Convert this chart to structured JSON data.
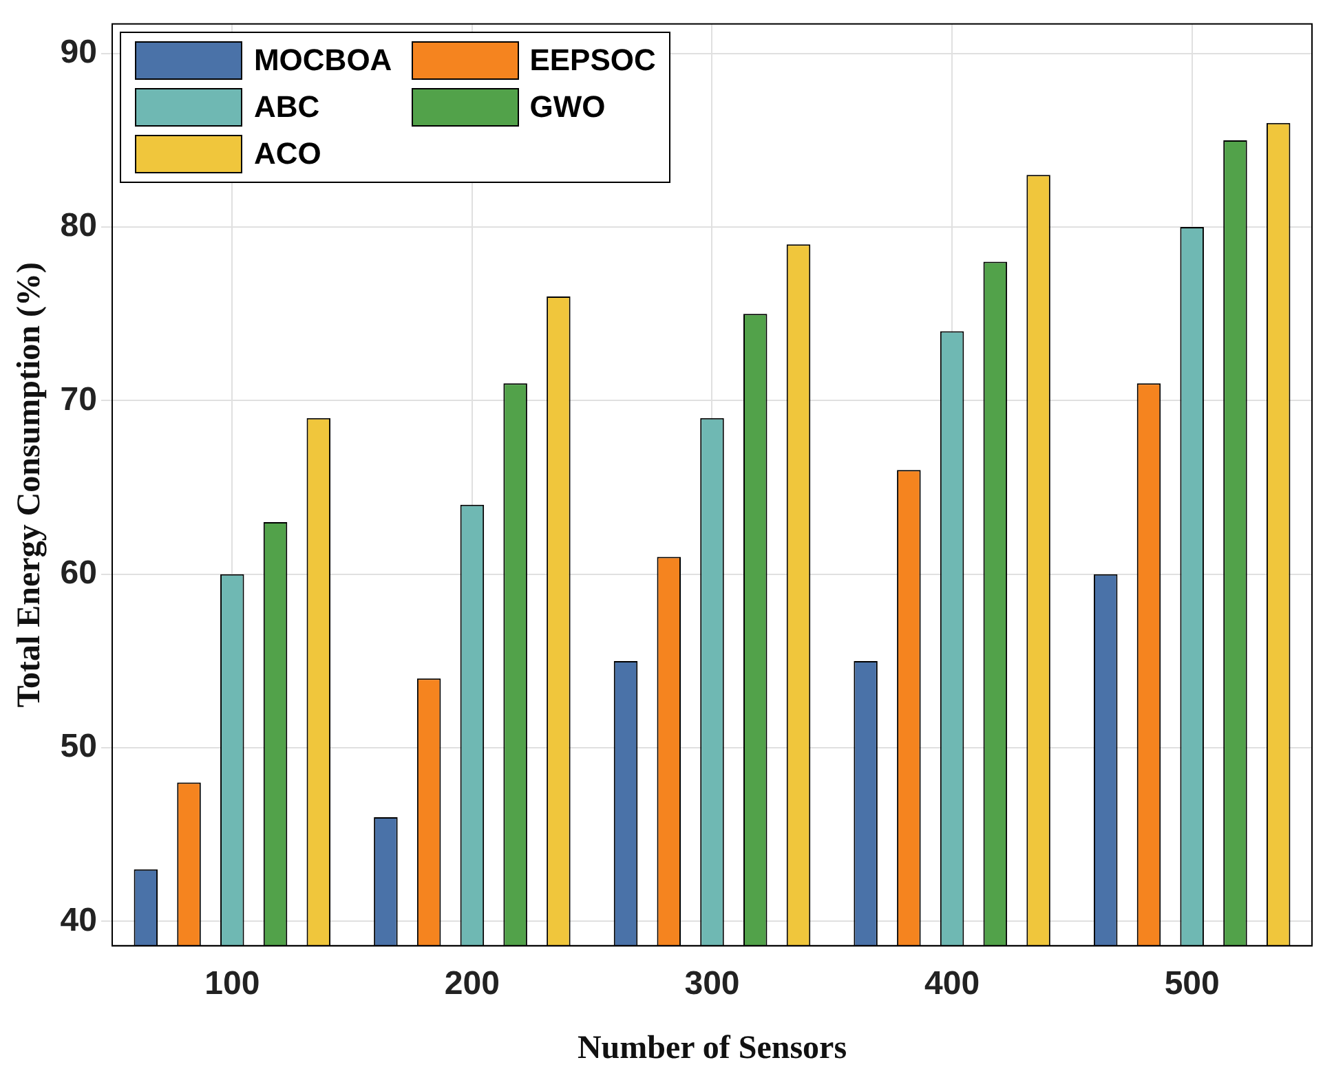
{
  "chart_data": {
    "type": "bar",
    "xlabel": "Number of Sensors",
    "ylabel": "Total Energy Consumption (%)",
    "categories": [
      "100",
      "200",
      "300",
      "400",
      "500"
    ],
    "series": [
      {
        "name": "MOCBOA",
        "color": "#4a72a8",
        "values": [
          43,
          46,
          55,
          55,
          60
        ]
      },
      {
        "name": "EEPSOC",
        "color": "#f5841f",
        "values": [
          48,
          54,
          61,
          66,
          71
        ]
      },
      {
        "name": "ABC",
        "color": "#6fb8b3",
        "values": [
          60,
          64,
          69,
          74,
          80
        ]
      },
      {
        "name": "GWO",
        "color": "#52a24a",
        "values": [
          63,
          71,
          75,
          78,
          85
        ]
      },
      {
        "name": "ACO",
        "color": "#f0c63c",
        "values": [
          69,
          76,
          79,
          83,
          86
        ]
      }
    ],
    "ylim": [
      38.6,
      91.7
    ],
    "yticks": [
      40,
      50,
      60,
      70,
      80,
      90
    ],
    "grid": true,
    "legend": "top left"
  }
}
